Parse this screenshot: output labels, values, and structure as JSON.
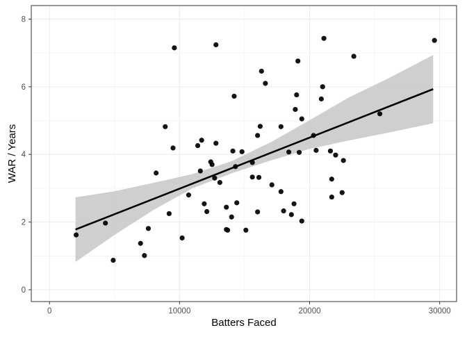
{
  "chart_data": {
    "type": "scatter",
    "title": "",
    "xlabel": "Batters Faced",
    "ylabel": "WAR / Years",
    "xlim": [
      0,
      30000
    ],
    "ylim": [
      0,
      8
    ],
    "xticks": [
      0,
      10000,
      20000,
      30000
    ],
    "xtick_labels": [
      "0",
      "10000",
      "20000",
      "30000"
    ],
    "yticks": [
      0,
      2,
      4,
      6,
      8
    ],
    "ytick_labels": [
      "0",
      "2",
      "4",
      "6",
      "8"
    ],
    "grid": true,
    "legend": "none",
    "colors": {
      "points": "#000000",
      "trend": "#000000",
      "band": "#cccccc",
      "grid": "#ebebeb",
      "panel_border": "#333333"
    },
    "points": [
      [
        2050,
        1.62
      ],
      [
        4300,
        1.97
      ],
      [
        4900,
        0.87
      ],
      [
        7000,
        1.37
      ],
      [
        7300,
        1.01
      ],
      [
        7600,
        1.81
      ],
      [
        8200,
        3.45
      ],
      [
        8900,
        4.82
      ],
      [
        9200,
        2.25
      ],
      [
        9500,
        4.19
      ],
      [
        9600,
        7.15
      ],
      [
        10200,
        1.53
      ],
      [
        10700,
        2.8
      ],
      [
        11400,
        4.26
      ],
      [
        11600,
        3.51
      ],
      [
        11700,
        4.42
      ],
      [
        11900,
        2.54
      ],
      [
        12100,
        2.31
      ],
      [
        12400,
        3.78
      ],
      [
        12500,
        3.7
      ],
      [
        12700,
        3.3
      ],
      [
        12800,
        4.33
      ],
      [
        12800,
        7.24
      ],
      [
        13100,
        3.17
      ],
      [
        13600,
        2.44
      ],
      [
        13600,
        1.78
      ],
      [
        13700,
        1.76
      ],
      [
        14000,
        2.15
      ],
      [
        14100,
        4.1
      ],
      [
        14200,
        5.72
      ],
      [
        14300,
        3.64
      ],
      [
        14400,
        2.57
      ],
      [
        14800,
        4.08
      ],
      [
        15100,
        1.76
      ],
      [
        15600,
        3.76
      ],
      [
        15600,
        3.33
      ],
      [
        16000,
        2.3
      ],
      [
        16000,
        4.56
      ],
      [
        16100,
        3.32
      ],
      [
        16200,
        4.83
      ],
      [
        16300,
        6.46
      ],
      [
        16600,
        6.1
      ],
      [
        17100,
        3.1
      ],
      [
        17800,
        2.9
      ],
      [
        17800,
        4.82
      ],
      [
        18000,
        2.33
      ],
      [
        18400,
        4.07
      ],
      [
        18600,
        2.22
      ],
      [
        18800,
        2.54
      ],
      [
        18900,
        5.33
      ],
      [
        19000,
        5.76
      ],
      [
        19100,
        6.76
      ],
      [
        19200,
        4.06
      ],
      [
        19400,
        2.03
      ],
      [
        19400,
        5.05
      ],
      [
        20300,
        4.56
      ],
      [
        20500,
        4.12
      ],
      [
        20900,
        5.64
      ],
      [
        21000,
        6.0
      ],
      [
        21100,
        7.43
      ],
      [
        21600,
        4.1
      ],
      [
        21700,
        2.74
      ],
      [
        21700,
        3.27
      ],
      [
        22000,
        3.98
      ],
      [
        22500,
        2.87
      ],
      [
        22600,
        3.82
      ],
      [
        23400,
        6.9
      ],
      [
        25400,
        5.2
      ],
      [
        29600,
        7.37
      ]
    ],
    "trend_line": {
      "x": [
        2000,
        29500
      ],
      "y": [
        1.78,
        5.93
      ]
    },
    "confidence_band": {
      "x": [
        2000,
        5000,
        8000,
        11000,
        14000,
        17000,
        20000,
        23000,
        26000,
        29500
      ],
      "lower": [
        0.82,
        1.62,
        2.36,
        3.0,
        3.44,
        3.82,
        4.16,
        4.41,
        4.64,
        4.92
      ],
      "upper": [
        2.73,
        2.91,
        3.16,
        3.42,
        3.8,
        4.36,
        5.01,
        5.68,
        6.24,
        6.94
      ]
    }
  }
}
